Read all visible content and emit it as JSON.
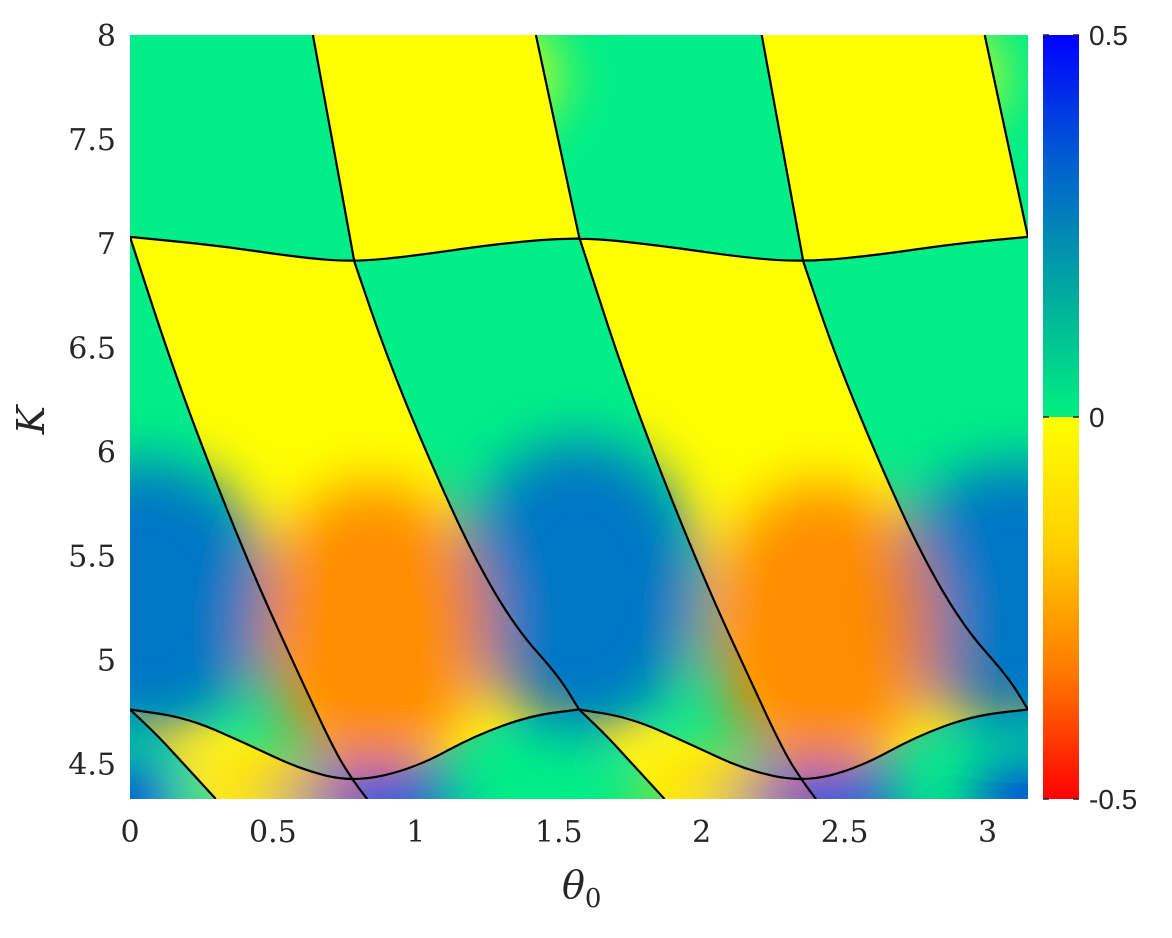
{
  "chart_data": {
    "type": "heatmap",
    "title": "",
    "xlabel": "θ",
    "xlabel_subscript": "0",
    "ylabel": "K",
    "xlim": [
      0,
      3.1416
    ],
    "ylim": [
      4.33,
      8
    ],
    "x_ticks": [
      0,
      0.5,
      1,
      1.5,
      2,
      2.5,
      3
    ],
    "x_tick_labels": [
      "0",
      "0.5",
      "1",
      "1.5",
      "2",
      "2.5",
      "3"
    ],
    "y_ticks": [
      4.5,
      5,
      5.5,
      6,
      6.5,
      7,
      7.5,
      8
    ],
    "y_tick_labels": [
      "4.5",
      "5",
      "5.5",
      "6",
      "6.5",
      "7",
      "7.5",
      "8"
    ],
    "grid": false,
    "colorbar": {
      "range": [
        -0.5,
        0.5
      ],
      "ticks": [
        -0.5,
        0,
        0.5
      ],
      "tick_labels": [
        "-0.5",
        "0",
        "0.5"
      ],
      "negative_colors": [
        "#ff0000",
        "#ff7a00",
        "#ffd000",
        "#ffff00"
      ],
      "positive_colors": [
        "#00f080",
        "#00a8a0",
        "#0060d0",
        "#0000ff"
      ]
    },
    "region_boundaries": [
      {
        "name": "lower-wave-1",
        "points": [
          [
            0,
            4.76
          ],
          [
            0.2,
            4.72
          ],
          [
            0.4,
            4.6
          ],
          [
            0.6,
            4.47
          ],
          [
            0.785,
            4.41
          ],
          [
            1.0,
            4.48
          ],
          [
            1.2,
            4.63
          ],
          [
            1.4,
            4.73
          ],
          [
            1.571,
            4.76
          ]
        ]
      },
      {
        "name": "lower-wave-2",
        "points": [
          [
            1.571,
            4.76
          ],
          [
            1.75,
            4.72
          ],
          [
            1.95,
            4.6
          ],
          [
            2.15,
            4.47
          ],
          [
            2.356,
            4.41
          ],
          [
            2.55,
            4.48
          ],
          [
            2.75,
            4.63
          ],
          [
            2.95,
            4.73
          ],
          [
            3.1416,
            4.76
          ]
        ]
      },
      {
        "name": "upper-wave",
        "points": [
          [
            0,
            7.03
          ],
          [
            0.3,
            6.99
          ],
          [
            0.6,
            6.93
          ],
          [
            0.785,
            6.91
          ],
          [
            1.0,
            6.94
          ],
          [
            1.3,
            7.0
          ],
          [
            1.571,
            7.03
          ],
          [
            1.85,
            6.99
          ],
          [
            2.15,
            6.93
          ],
          [
            2.356,
            6.91
          ],
          [
            2.6,
            6.94
          ],
          [
            2.9,
            7.0
          ],
          [
            3.1416,
            7.03
          ]
        ]
      },
      {
        "name": "top-curve-1",
        "points": [
          [
            0.64,
            8
          ],
          [
            0.785,
            6.91
          ]
        ]
      },
      {
        "name": "top-curve-2",
        "points": [
          [
            1.42,
            8
          ],
          [
            1.571,
            7.03
          ]
        ]
      },
      {
        "name": "top-curve-3",
        "points": [
          [
            2.21,
            8
          ],
          [
            2.356,
            6.91
          ]
        ]
      },
      {
        "name": "top-curve-4",
        "points": [
          [
            2.99,
            8
          ],
          [
            3.1416,
            7.03
          ]
        ]
      },
      {
        "name": "diag-curve-1",
        "points": [
          [
            0,
            7.03
          ],
          [
            0.15,
            6.4
          ],
          [
            0.3,
            5.85
          ],
          [
            0.45,
            5.35
          ],
          [
            0.6,
            4.9
          ],
          [
            0.72,
            4.55
          ],
          [
            0.785,
            4.41
          ],
          [
            0.83,
            4.33
          ]
        ]
      },
      {
        "name": "diag-curve-2",
        "points": [
          [
            0.785,
            6.91
          ],
          [
            0.9,
            6.45
          ],
          [
            1.05,
            5.95
          ],
          [
            1.2,
            5.5
          ],
          [
            1.35,
            5.15
          ],
          [
            1.5,
            4.92
          ],
          [
            1.571,
            4.76
          ]
        ]
      },
      {
        "name": "diag-curve-3",
        "points": [
          [
            1.571,
            7.03
          ],
          [
            1.72,
            6.4
          ],
          [
            1.87,
            5.85
          ],
          [
            2.02,
            5.35
          ],
          [
            2.17,
            4.9
          ],
          [
            2.29,
            4.55
          ],
          [
            2.356,
            4.41
          ],
          [
            2.4,
            4.33
          ]
        ]
      },
      {
        "name": "diag-curve-4",
        "points": [
          [
            2.356,
            6.91
          ],
          [
            2.47,
            6.45
          ],
          [
            2.62,
            5.95
          ],
          [
            2.77,
            5.5
          ],
          [
            2.92,
            5.15
          ],
          [
            3.07,
            4.92
          ],
          [
            3.1416,
            4.76
          ]
        ]
      },
      {
        "name": "small-curve-1",
        "points": [
          [
            0,
            4.76
          ],
          [
            0.1,
            4.63
          ],
          [
            0.2,
            4.48
          ],
          [
            0.3,
            4.33
          ]
        ]
      },
      {
        "name": "small-curve-2",
        "points": [
          [
            1.571,
            4.76
          ],
          [
            1.67,
            4.63
          ],
          [
            1.77,
            4.48
          ],
          [
            1.87,
            4.33
          ]
        ]
      }
    ],
    "extrema": [
      {
        "x": 0.05,
        "y": 5.3,
        "value": 0.28,
        "spread": [
          0.45,
          0.65
        ]
      },
      {
        "x": 1.571,
        "y": 5.35,
        "value": 0.3,
        "spread": [
          0.42,
          0.7
        ]
      },
      {
        "x": 3.1,
        "y": 5.3,
        "value": 0.28,
        "spread": [
          0.45,
          0.65
        ]
      },
      {
        "x": 0.785,
        "y": 4.34,
        "value": 0.5,
        "spread": [
          0.35,
          0.18
        ]
      },
      {
        "x": 0.0,
        "y": 4.33,
        "value": 0.5,
        "spread": [
          0.18,
          0.15
        ]
      },
      {
        "x": 2.356,
        "y": 4.34,
        "value": 0.5,
        "spread": [
          0.35,
          0.18
        ]
      },
      {
        "x": 3.14,
        "y": 4.33,
        "value": 0.45,
        "spread": [
          0.2,
          0.15
        ]
      },
      {
        "x": 0.85,
        "y": 5.15,
        "value": -0.3,
        "spread": [
          0.4,
          0.7
        ]
      },
      {
        "x": 2.42,
        "y": 5.15,
        "value": -0.3,
        "spread": [
          0.4,
          0.7
        ]
      },
      {
        "x": 0.45,
        "y": 4.4,
        "value": -0.2,
        "spread": [
          0.25,
          0.12
        ]
      },
      {
        "x": 2.0,
        "y": 4.4,
        "value": -0.2,
        "spread": [
          0.25,
          0.12
        ]
      },
      {
        "x": 1.2,
        "y": 7.8,
        "value": -0.06,
        "spread": [
          0.3,
          0.3
        ]
      },
      {
        "x": 2.75,
        "y": 7.8,
        "value": -0.06,
        "spread": [
          0.3,
          0.3
        ]
      }
    ]
  }
}
